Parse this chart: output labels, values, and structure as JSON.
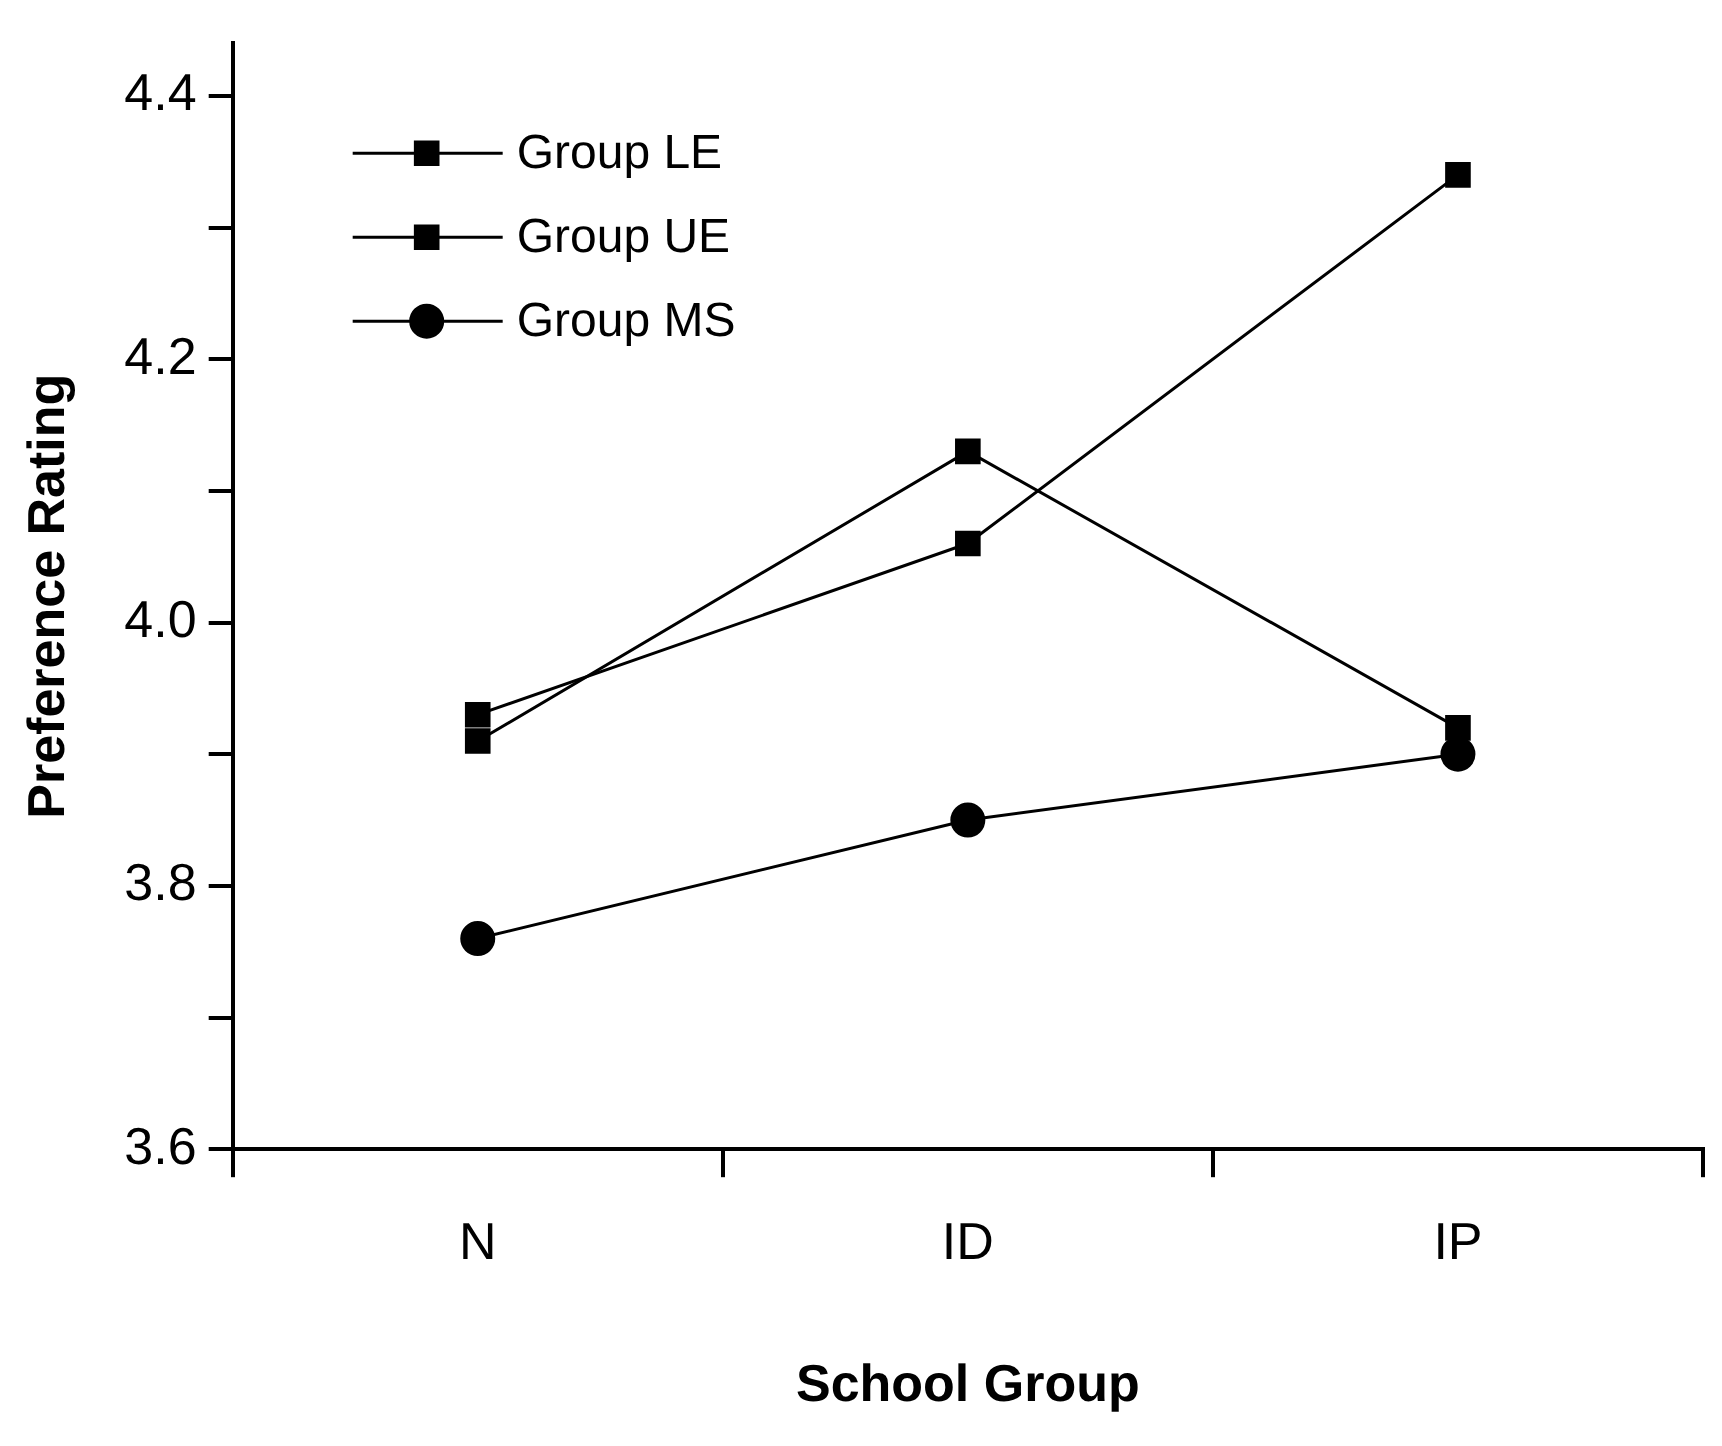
{
  "chart_data": {
    "type": "line",
    "xlabel": "School Group",
    "ylabel": "Preference Rating",
    "categories": [
      "N",
      "ID",
      "IP"
    ],
    "series": [
      {
        "name": "Group LE",
        "color": "#000000",
        "marker": "square",
        "values": [
          3.93,
          4.06,
          4.34
        ]
      },
      {
        "name": "Group UE",
        "color": "#000000",
        "marker": "square",
        "values": [
          3.91,
          4.13,
          3.92
        ]
      },
      {
        "name": "Group MS",
        "color": "#000000",
        "marker": "circle",
        "values": [
          3.76,
          3.85,
          3.9
        ]
      }
    ],
    "ylim": [
      3.6,
      4.44
    ],
    "yticks": [
      3.6,
      {
        "value": 3.7,
        "label": null
      },
      3.8,
      {
        "value": 3.9,
        "label": null
      },
      {
        "value": 4.0,
        "label": "4.0"
      },
      {
        "value": 4.1,
        "label": null
      },
      4.2,
      {
        "value": 4.3,
        "label": null
      },
      4.4
    ],
    "grid": false,
    "legend": "top left",
    "line_style": "solid"
  }
}
